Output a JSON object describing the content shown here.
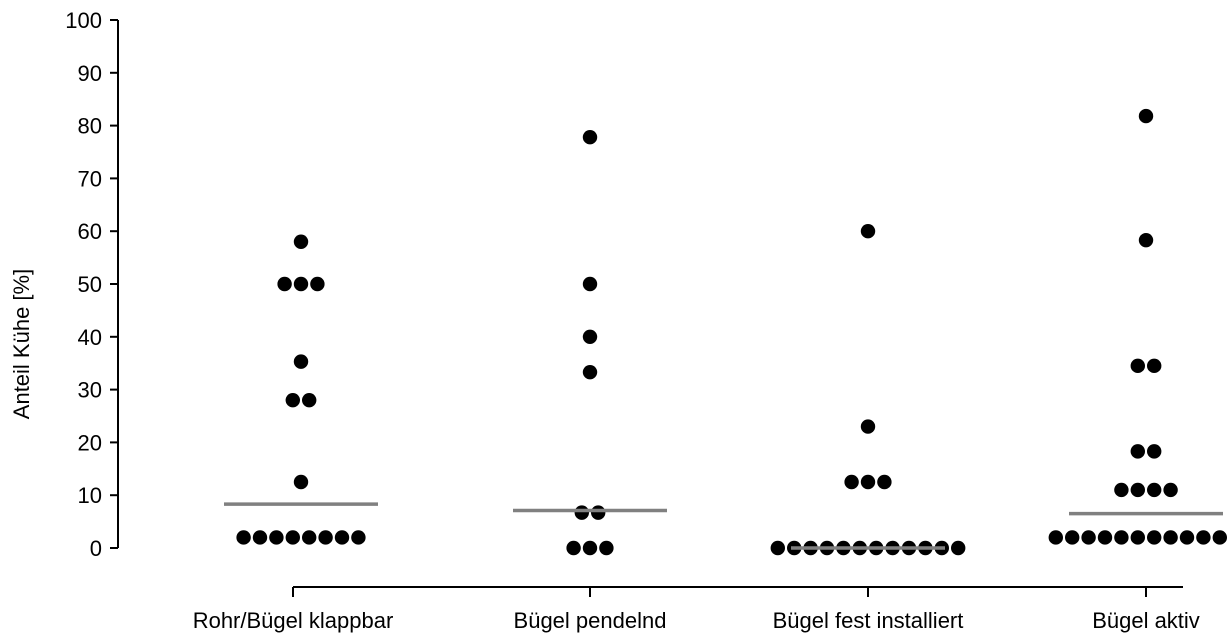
{
  "chart_data": {
    "type": "scatter",
    "ylabel": "Anteil Kühe [%]",
    "xlabel": "",
    "title": "",
    "ylim": [
      0,
      100
    ],
    "yticks": [
      0,
      10,
      20,
      30,
      40,
      50,
      60,
      70,
      80,
      90,
      100
    ],
    "grid": false,
    "categories": [
      "Rohr/Bügel klappbar",
      "Bügel pendelnd",
      "Bügel fest installiert",
      "Bügel aktiv"
    ],
    "series": [
      {
        "values": [
          2,
          2,
          2,
          2,
          2,
          2,
          2,
          2,
          12.5,
          28,
          28,
          35.3,
          50,
          50,
          50,
          58
        ]
      },
      {
        "values": [
          0,
          0,
          0,
          6.7,
          6.7,
          33.3,
          40,
          50,
          77.8
        ]
      },
      {
        "values": [
          0,
          0,
          0,
          0,
          0,
          0,
          0,
          0,
          0,
          0,
          0,
          0,
          12.5,
          12.5,
          12.5,
          23,
          60
        ]
      },
      {
        "values": [
          2,
          2,
          2,
          2,
          2,
          2,
          2,
          2,
          2,
          2,
          2,
          2,
          11,
          11,
          11,
          11,
          18.3,
          18.3,
          34.5,
          34.5,
          58.3,
          81.8
        ]
      }
    ],
    "medians": [
      8.3,
      7.1,
      0,
      6.5
    ],
    "marker_color": "#000000",
    "median_color": "#808080"
  }
}
